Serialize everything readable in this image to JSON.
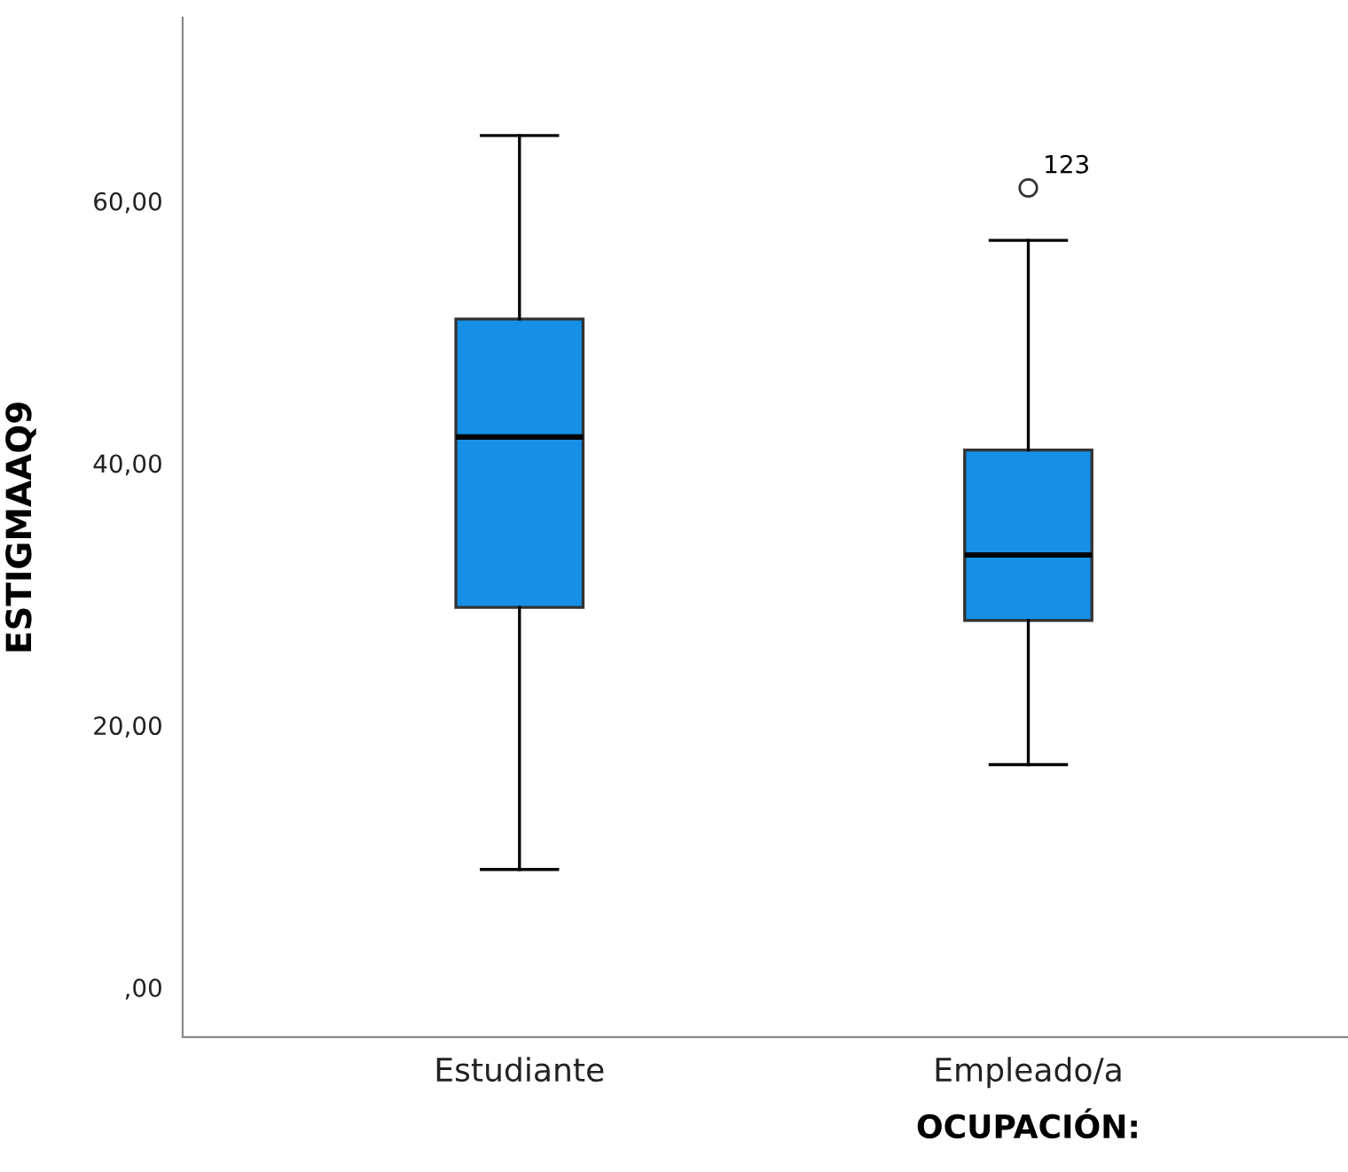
{
  "chart_data": {
    "type": "box",
    "xlabel": "OCUPACIÓN:",
    "ylabel": "ESTIGMAAQ9",
    "categories": [
      "Estudiante",
      "Empleado/a"
    ],
    "boxes": [
      {
        "low": 9,
        "q1": 29,
        "median": 42,
        "q3": 51,
        "high": 65
      },
      {
        "low": 17,
        "q1": 28,
        "median": 33,
        "q3": 41,
        "high": 57,
        "outliers": [
          61
        ]
      }
    ],
    "color": "#1590e6",
    "ylim": [
      -3.8,
      74
    ],
    "yticks": [
      {
        "value": 0,
        "label": ",00"
      },
      {
        "value": 20,
        "label": "20,00"
      },
      {
        "value": 40,
        "label": "40,00"
      },
      {
        "value": 60,
        "label": "60,00"
      }
    ],
    "annotations": [
      "123"
    ],
    "grid": false
  }
}
